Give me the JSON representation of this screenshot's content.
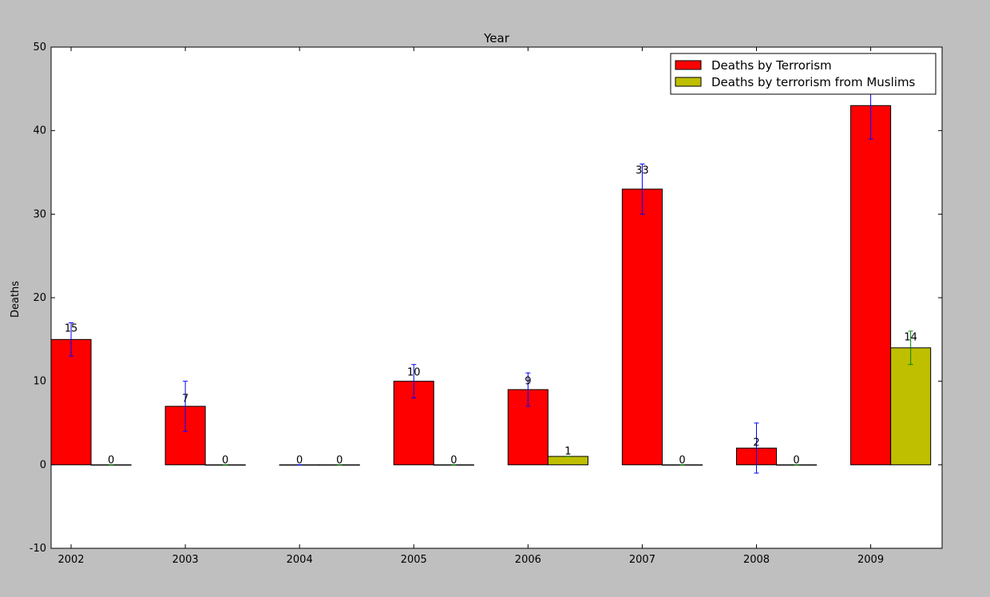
{
  "chart_data": {
    "type": "bar",
    "title": "Year",
    "xlabel": "",
    "ylabel": "Deaths",
    "categories": [
      "2002",
      "2003",
      "2004",
      "2005",
      "2006",
      "2007",
      "2008",
      "2009"
    ],
    "ylim": [
      -10,
      50
    ],
    "yticks": [
      -10,
      0,
      10,
      20,
      30,
      40,
      50
    ],
    "grid": false,
    "legend_position": "top-right",
    "series": [
      {
        "name": "Deaths by Terrorism",
        "color": "#ff0000",
        "error_color": "#0000ff",
        "values": [
          15,
          7,
          0,
          10,
          9,
          33,
          2,
          43
        ],
        "errors": [
          2,
          3,
          0,
          2,
          2,
          3,
          3,
          4
        ],
        "labels": [
          "15",
          "7",
          "0",
          "10",
          "9",
          "33",
          "2",
          ""
        ]
      },
      {
        "name": "Deaths by terrorism from Muslims",
        "color": "#bfbf00",
        "error_color": "#008000",
        "values": [
          0,
          0,
          0,
          0,
          1,
          0,
          0,
          14
        ],
        "errors": [
          0,
          0,
          0,
          0,
          0,
          0,
          0,
          2
        ],
        "labels": [
          "0",
          "0",
          "0",
          "0",
          "1",
          "0",
          "0",
          "14"
        ]
      }
    ]
  }
}
